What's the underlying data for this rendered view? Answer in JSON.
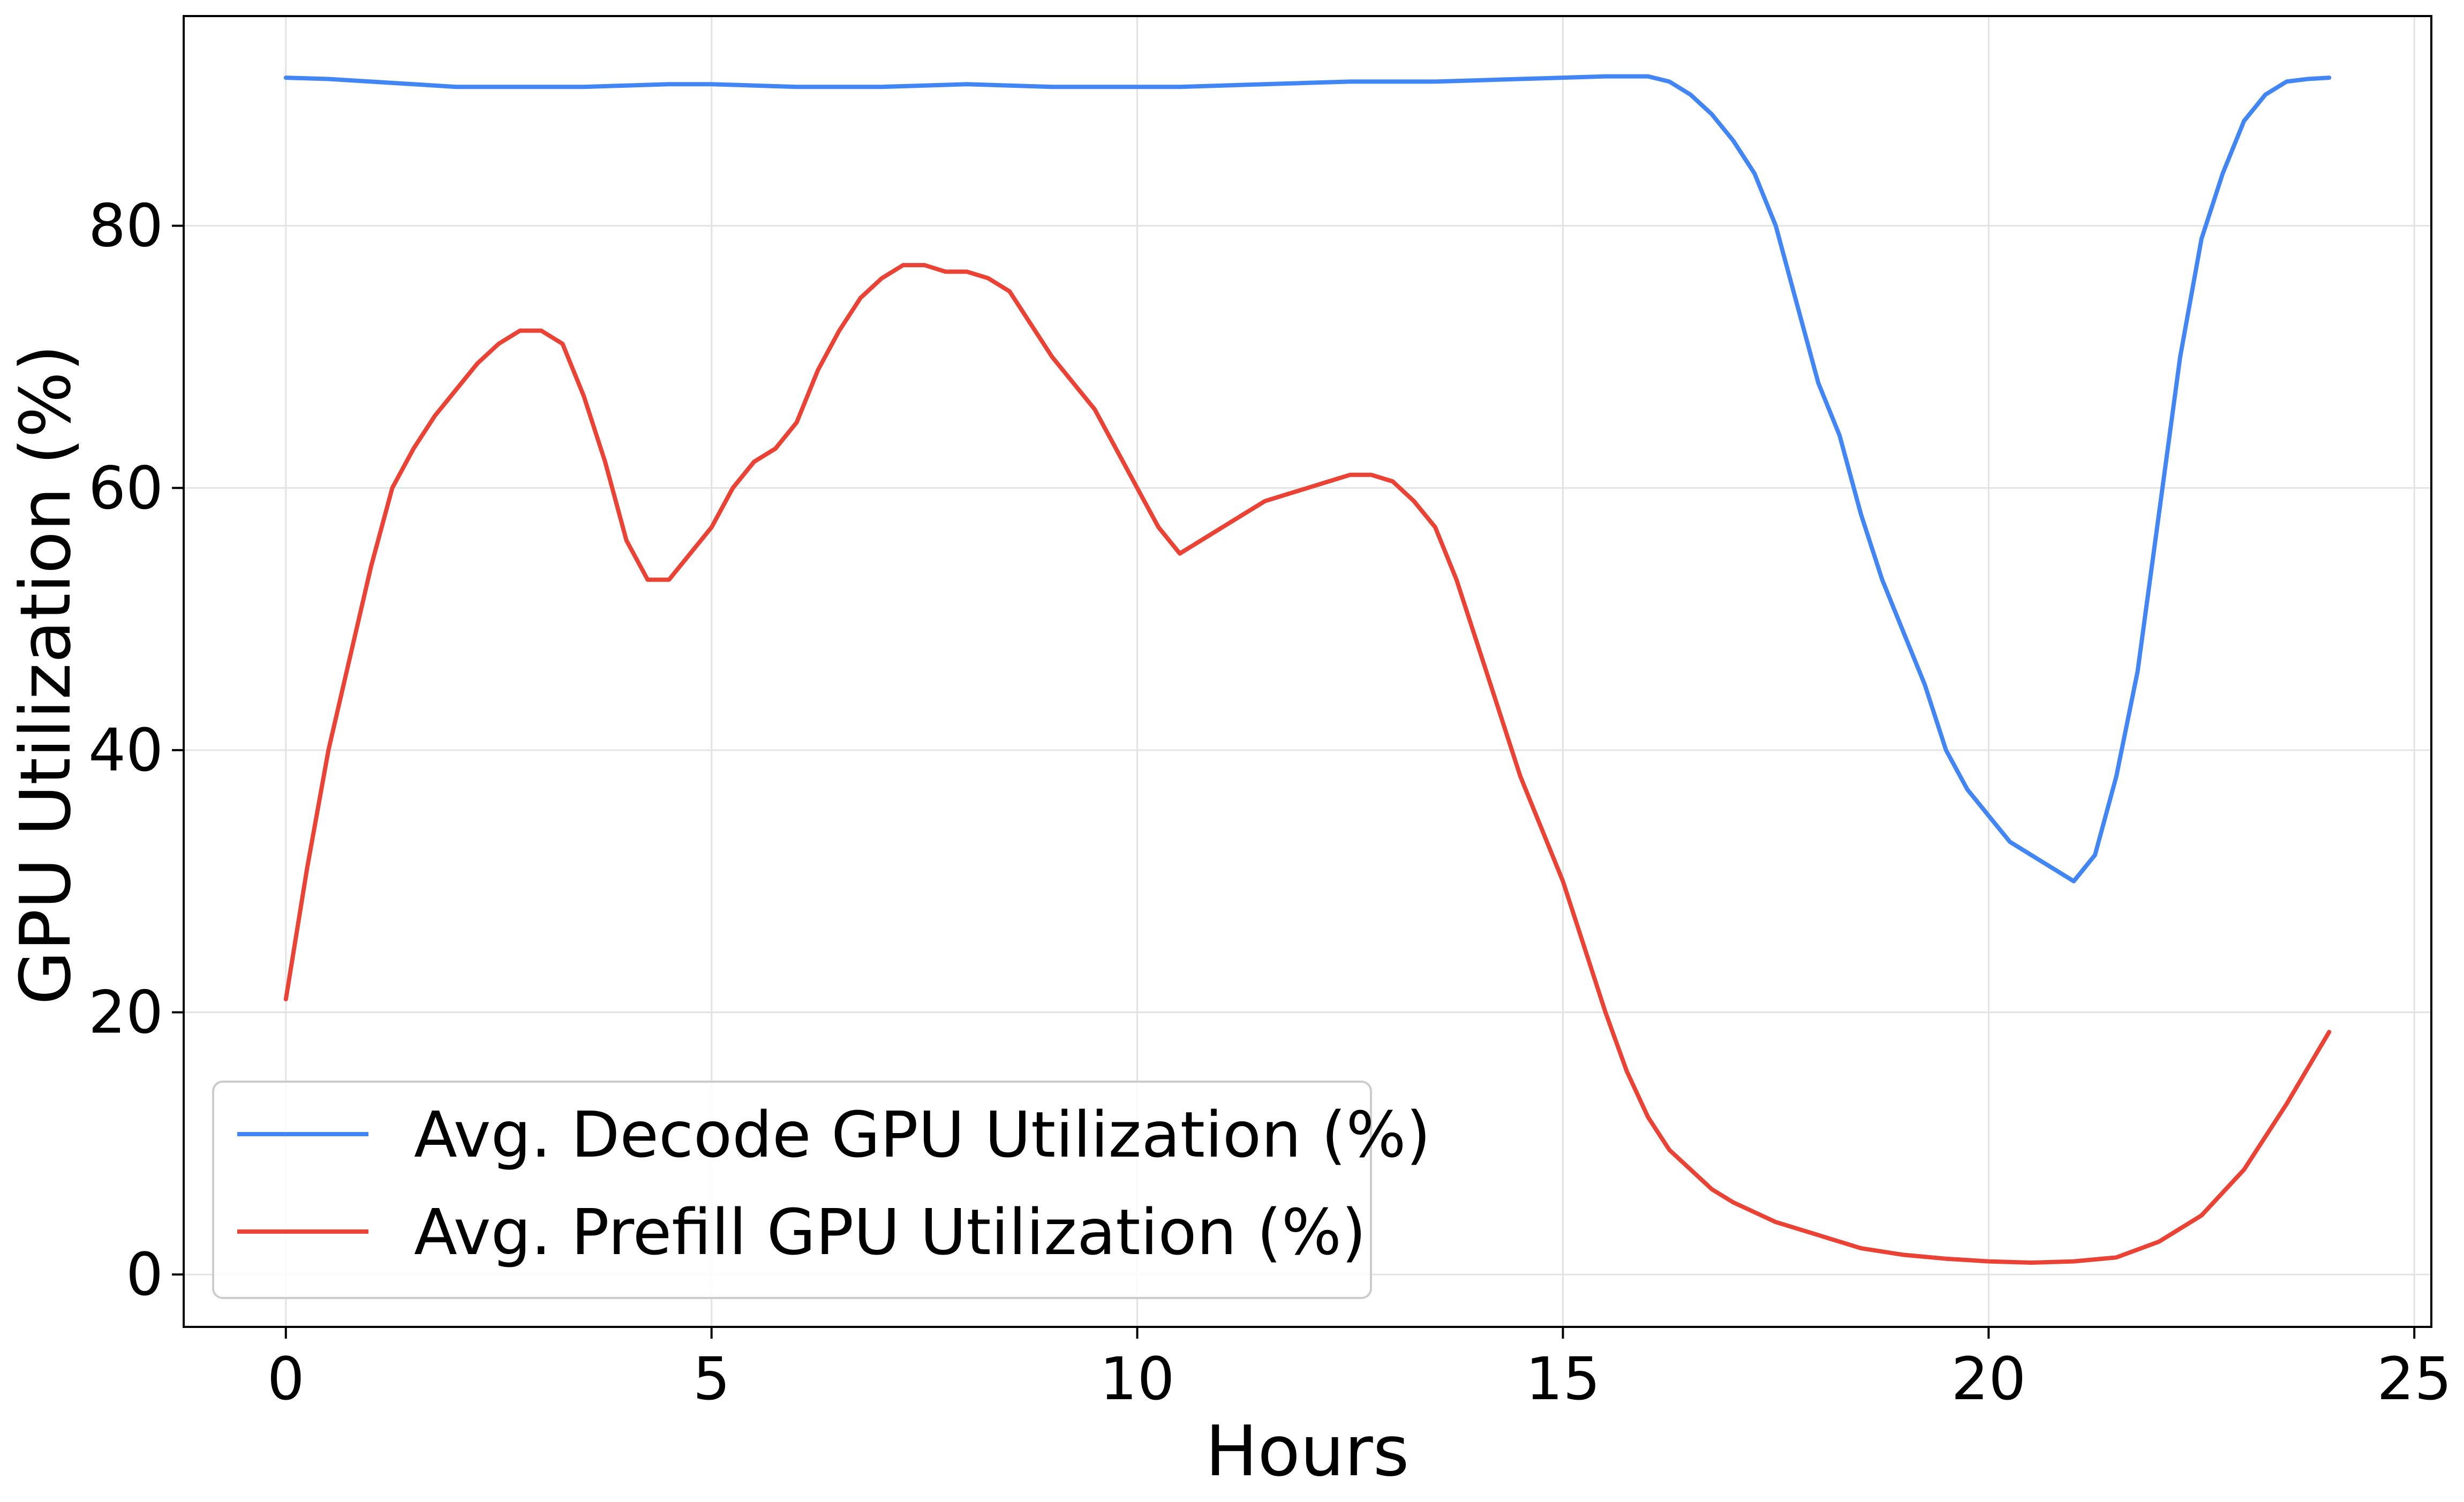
{
  "chart_data": {
    "type": "line",
    "title": "",
    "xlabel": "Hours",
    "ylabel": "GPU Utilization (%)",
    "xlim": [
      -1.2,
      25.2
    ],
    "ylim": [
      -4,
      96
    ],
    "grid": true,
    "legend_position": "lower-left",
    "x_ticks": [
      {
        "value": 0,
        "label": "0"
      },
      {
        "value": 5,
        "label": "5"
      },
      {
        "value": 10,
        "label": "10"
      },
      {
        "value": 15,
        "label": "15"
      },
      {
        "value": 20,
        "label": "20"
      },
      {
        "value": 25,
        "label": "25"
      }
    ],
    "y_ticks": [
      {
        "value": 0,
        "label": "0"
      },
      {
        "value": 20,
        "label": "20"
      },
      {
        "value": 40,
        "label": "40"
      },
      {
        "value": 60,
        "label": "60"
      },
      {
        "value": 80,
        "label": "80"
      }
    ],
    "series": [
      {
        "name": "Avg. Decode GPU Utilization (%)",
        "color": "#4285f4",
        "x": [
          0,
          0.5,
          1,
          1.5,
          2,
          2.5,
          3,
          3.5,
          4,
          4.5,
          5,
          5.5,
          6,
          6.5,
          7,
          7.5,
          8,
          8.5,
          9,
          9.5,
          10,
          10.5,
          11,
          11.5,
          12,
          12.5,
          13,
          13.5,
          14,
          14.5,
          15,
          15.5,
          16,
          16.25,
          16.5,
          16.75,
          17,
          17.25,
          17.5,
          17.75,
          18,
          18.25,
          18.5,
          18.75,
          19,
          19.25,
          19.5,
          19.75,
          20,
          20.25,
          20.5,
          20.75,
          21,
          21.25,
          21.5,
          21.75,
          22,
          22.25,
          22.5,
          22.75,
          23,
          23.25,
          23.5,
          23.75,
          24
        ],
        "values": [
          91.3,
          91.2,
          91.0,
          90.8,
          90.6,
          90.6,
          90.6,
          90.6,
          90.7,
          90.8,
          90.8,
          90.7,
          90.6,
          90.6,
          90.6,
          90.7,
          90.8,
          90.7,
          90.6,
          90.6,
          90.6,
          90.6,
          90.7,
          90.8,
          90.9,
          91.0,
          91.0,
          91.0,
          91.1,
          91.2,
          91.3,
          91.4,
          91.4,
          91.0,
          90.0,
          88.5,
          86.5,
          84.0,
          80.0,
          74.0,
          68.0,
          64.0,
          58.0,
          53.0,
          49.0,
          45.0,
          40.0,
          37.0,
          35.0,
          33.0,
          32.0,
          31.0,
          30.0,
          32.0,
          38.0,
          46.0,
          58.0,
          70.0,
          79.0,
          84.0,
          88.0,
          90.0,
          91.0,
          91.2,
          91.3
        ]
      },
      {
        "name": "Avg. Prefill GPU Utilization (%)",
        "color": "#ea4335",
        "x": [
          0,
          0.25,
          0.5,
          0.75,
          1,
          1.25,
          1.5,
          1.75,
          2,
          2.25,
          2.5,
          2.75,
          3,
          3.25,
          3.5,
          3.75,
          4,
          4.25,
          4.5,
          4.75,
          5,
          5.25,
          5.5,
          5.75,
          6,
          6.25,
          6.5,
          6.75,
          7,
          7.25,
          7.5,
          7.75,
          8,
          8.25,
          8.5,
          8.75,
          9,
          9.25,
          9.5,
          9.75,
          10,
          10.25,
          10.5,
          10.75,
          11,
          11.25,
          11.5,
          11.75,
          12,
          12.25,
          12.5,
          12.75,
          13,
          13.25,
          13.5,
          13.75,
          14,
          14.25,
          14.5,
          14.75,
          15,
          15.25,
          15.5,
          15.75,
          16,
          16.25,
          16.5,
          16.75,
          17,
          17.5,
          18,
          18.5,
          19,
          19.5,
          20,
          20.5,
          21,
          21.5,
          22,
          22.5,
          23,
          23.5,
          24
        ],
        "values": [
          21,
          31,
          40,
          47,
          54,
          60,
          63,
          65.5,
          67.5,
          69.5,
          71,
          72,
          72,
          71,
          67,
          62,
          56,
          53,
          53,
          55,
          57,
          60,
          62,
          63,
          65,
          69,
          72,
          74.5,
          76,
          77,
          77,
          76.5,
          76.5,
          76,
          75,
          72.5,
          70,
          68,
          66,
          63,
          60,
          57,
          55,
          56,
          57,
          58,
          59,
          59.5,
          60,
          60.5,
          61,
          61,
          60.5,
          59,
          57,
          53,
          48,
          43,
          38,
          34,
          30,
          25,
          20,
          15.5,
          12,
          9.5,
          8,
          6.5,
          5.5,
          4,
          3,
          2,
          1.5,
          1.2,
          1.0,
          0.9,
          1.0,
          1.3,
          2.5,
          4.5,
          8,
          13,
          18.5
        ]
      }
    ]
  }
}
